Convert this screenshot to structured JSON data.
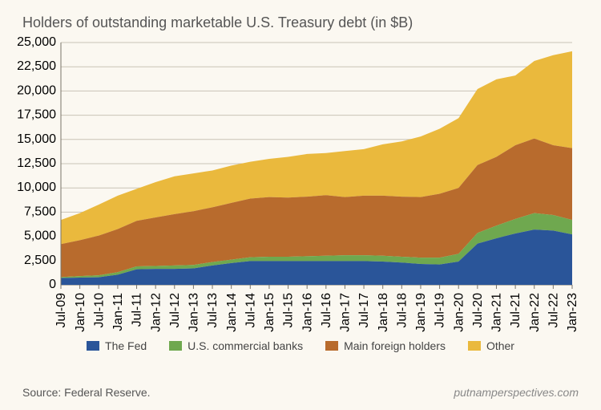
{
  "title": "Holders of outstanding marketable U.S. Treasury debt (in $B)",
  "source": "Source: Federal Reserve.",
  "attribution": "putnamperspectives.com",
  "chart": {
    "type": "stacked-area",
    "background_color": "#fbf8f1",
    "grid_color": "#c9c3b6",
    "axis_color": "#7a7469",
    "title_fontsize": 18,
    "tick_fontsize": 12,
    "legend_fontsize": 14,
    "ylim": [
      0,
      25000
    ],
    "ytick_step": 2500,
    "yticks": [
      0,
      2500,
      5000,
      7500,
      10000,
      12500,
      15000,
      17500,
      20000,
      22500,
      25000
    ],
    "categories": [
      "Jul-09",
      "Jan-10",
      "Jul-10",
      "Jan-11",
      "Jul-11",
      "Jan-12",
      "Jul-12",
      "Jan-13",
      "Jul-13",
      "Jan-14",
      "Jul-14",
      "Jan-15",
      "Jul-15",
      "Jan-16",
      "Jul-16",
      "Jan-17",
      "Jul-17",
      "Jan-18",
      "Jul-18",
      "Jan-19",
      "Jul-19",
      "Jan-20",
      "Jul-20",
      "Jan-21",
      "Jul-21",
      "Jan-22",
      "Jul-22",
      "Jan-23"
    ],
    "series": [
      {
        "name": "The Fed",
        "color": "#2a5599",
        "values": [
          700,
          750,
          780,
          1050,
          1600,
          1650,
          1650,
          1700,
          2000,
          2250,
          2450,
          2450,
          2450,
          2450,
          2450,
          2450,
          2450,
          2400,
          2300,
          2150,
          2100,
          2400,
          4250,
          4800,
          5300,
          5700,
          5600,
          5200
        ]
      },
      {
        "name": "U.S. commercial banks",
        "color": "#6fa84f",
        "values": [
          100,
          150,
          200,
          250,
          300,
          300,
          350,
          350,
          350,
          350,
          400,
          450,
          450,
          500,
          550,
          600,
          600,
          600,
          600,
          650,
          700,
          800,
          1100,
          1300,
          1500,
          1700,
          1600,
          1500
        ]
      },
      {
        "name": "Main foreign holders",
        "color": "#b86b2d",
        "values": [
          3400,
          3700,
          4100,
          4450,
          4700,
          5000,
          5300,
          5550,
          5650,
          5850,
          6050,
          6150,
          6100,
          6150,
          6250,
          6000,
          6150,
          6200,
          6200,
          6250,
          6600,
          6800,
          7000,
          7100,
          7600,
          7700,
          7200,
          7400
        ]
      },
      {
        "name": "Other",
        "color": "#eab93d",
        "values": [
          2500,
          2800,
          3200,
          3450,
          3300,
          3650,
          3900,
          3900,
          3800,
          3850,
          3800,
          3950,
          4200,
          4400,
          4350,
          4750,
          4800,
          5300,
          5700,
          6250,
          6700,
          7200,
          7850,
          8000,
          7200,
          8000,
          9300,
          10000
        ]
      }
    ]
  }
}
